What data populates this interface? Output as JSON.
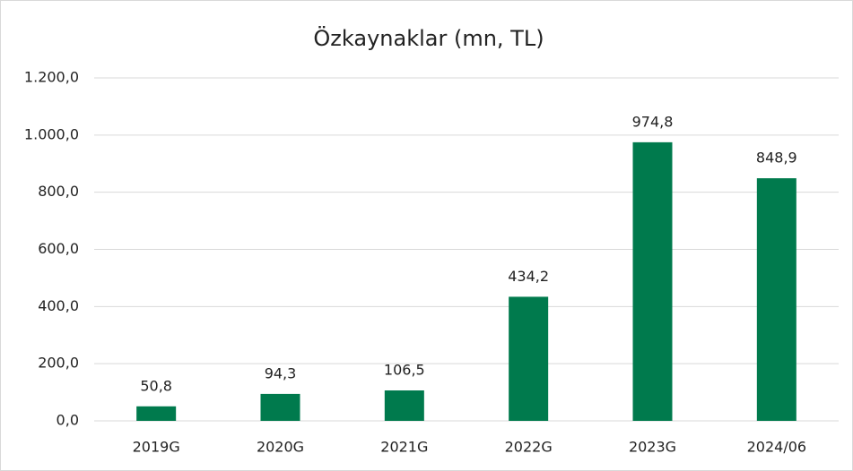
{
  "chart_data": {
    "type": "bar",
    "title": "Özkaynaklar (mn, TL)",
    "categories": [
      "2019G",
      "2020G",
      "2021G",
      "2022G",
      "2023G",
      "2024/06"
    ],
    "values": [
      50.8,
      94.3,
      106.5,
      434.2,
      974.8,
      848.9
    ],
    "value_labels": [
      "50,8",
      "94,3",
      "106,5",
      "434,2",
      "974,8",
      "848,9"
    ],
    "color": "#007a4d",
    "ylim": [
      0,
      1200
    ],
    "yticks": [
      {
        "value": 0,
        "label": "0,0"
      },
      {
        "value": 200,
        "label": "200,0"
      },
      {
        "value": 400,
        "label": "400,0"
      },
      {
        "value": 600,
        "label": "600,0"
      },
      {
        "value": 800,
        "label": "800,0"
      },
      {
        "value": 1000,
        "label": "1.000,0"
      },
      {
        "value": 1200,
        "label": "1.200,0"
      }
    ],
    "grid": true
  }
}
